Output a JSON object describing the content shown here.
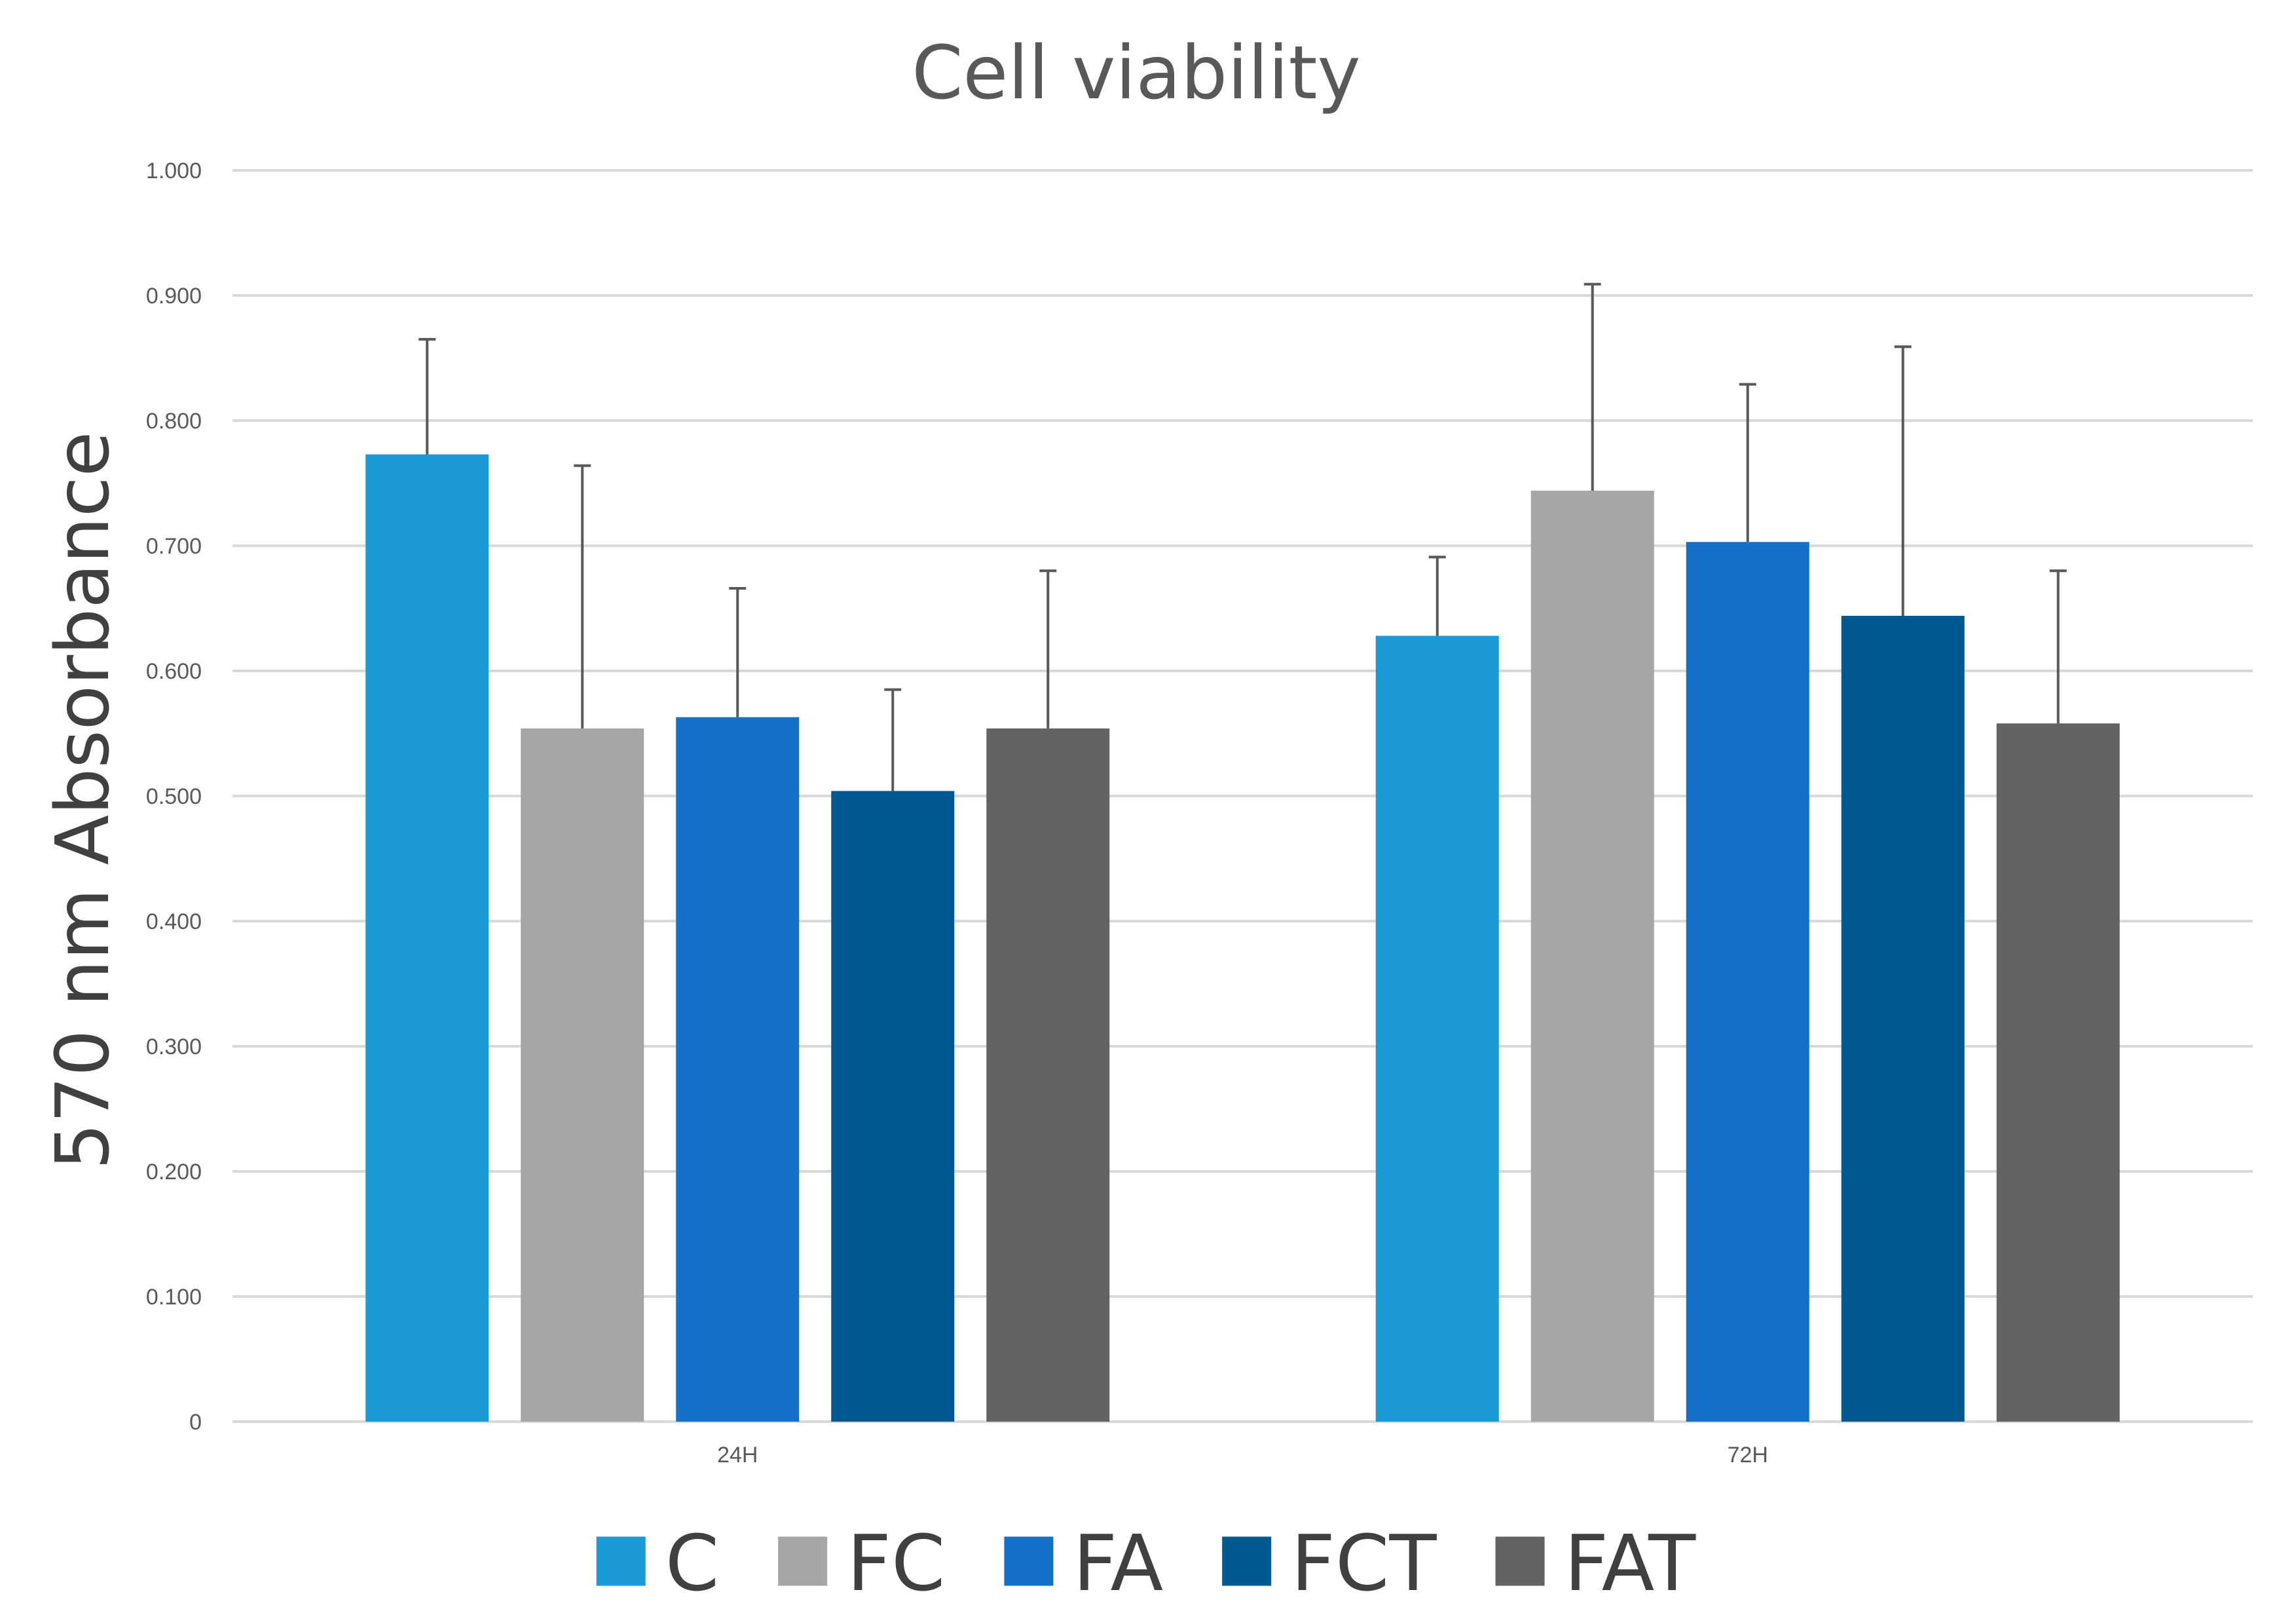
{
  "chart_data": {
    "type": "bar",
    "title": "Cell viability",
    "xlabel": "",
    "ylabel": "570 nm Absorbance",
    "ylim": [
      0,
      1.0
    ],
    "yticks": [
      0,
      0.1,
      0.2,
      0.3,
      0.4,
      0.5,
      0.6,
      0.7,
      0.8,
      0.9,
      1.0
    ],
    "ytick_labels": [
      "0",
      "0.100",
      "0.200",
      "0.300",
      "0.400",
      "0.500",
      "0.600",
      "0.700",
      "0.800",
      "0.900",
      "1.000"
    ],
    "grid": true,
    "legend_position": "bottom",
    "categories": [
      "24H",
      "72H"
    ],
    "series": [
      {
        "name": "C",
        "color": "#1a9bd7",
        "values": [
          0.773,
          0.628
        ],
        "errors": [
          0.092,
          0.063
        ]
      },
      {
        "name": "FC",
        "color": "#a6a6a6",
        "values": [
          0.554,
          0.744
        ],
        "errors": [
          0.21,
          0.165
        ]
      },
      {
        "name": "FA",
        "color": "#1570c8",
        "values": [
          0.563,
          0.703
        ],
        "errors": [
          0.103,
          0.126
        ]
      },
      {
        "name": "FCT",
        "color": "#005a8f",
        "values": [
          0.504,
          0.644
        ],
        "errors": [
          0.081,
          0.215
        ]
      },
      {
        "name": "FAT",
        "color": "#636363",
        "values": [
          0.554,
          0.558
        ],
        "errors": [
          0.126,
          0.122
        ]
      }
    ]
  }
}
